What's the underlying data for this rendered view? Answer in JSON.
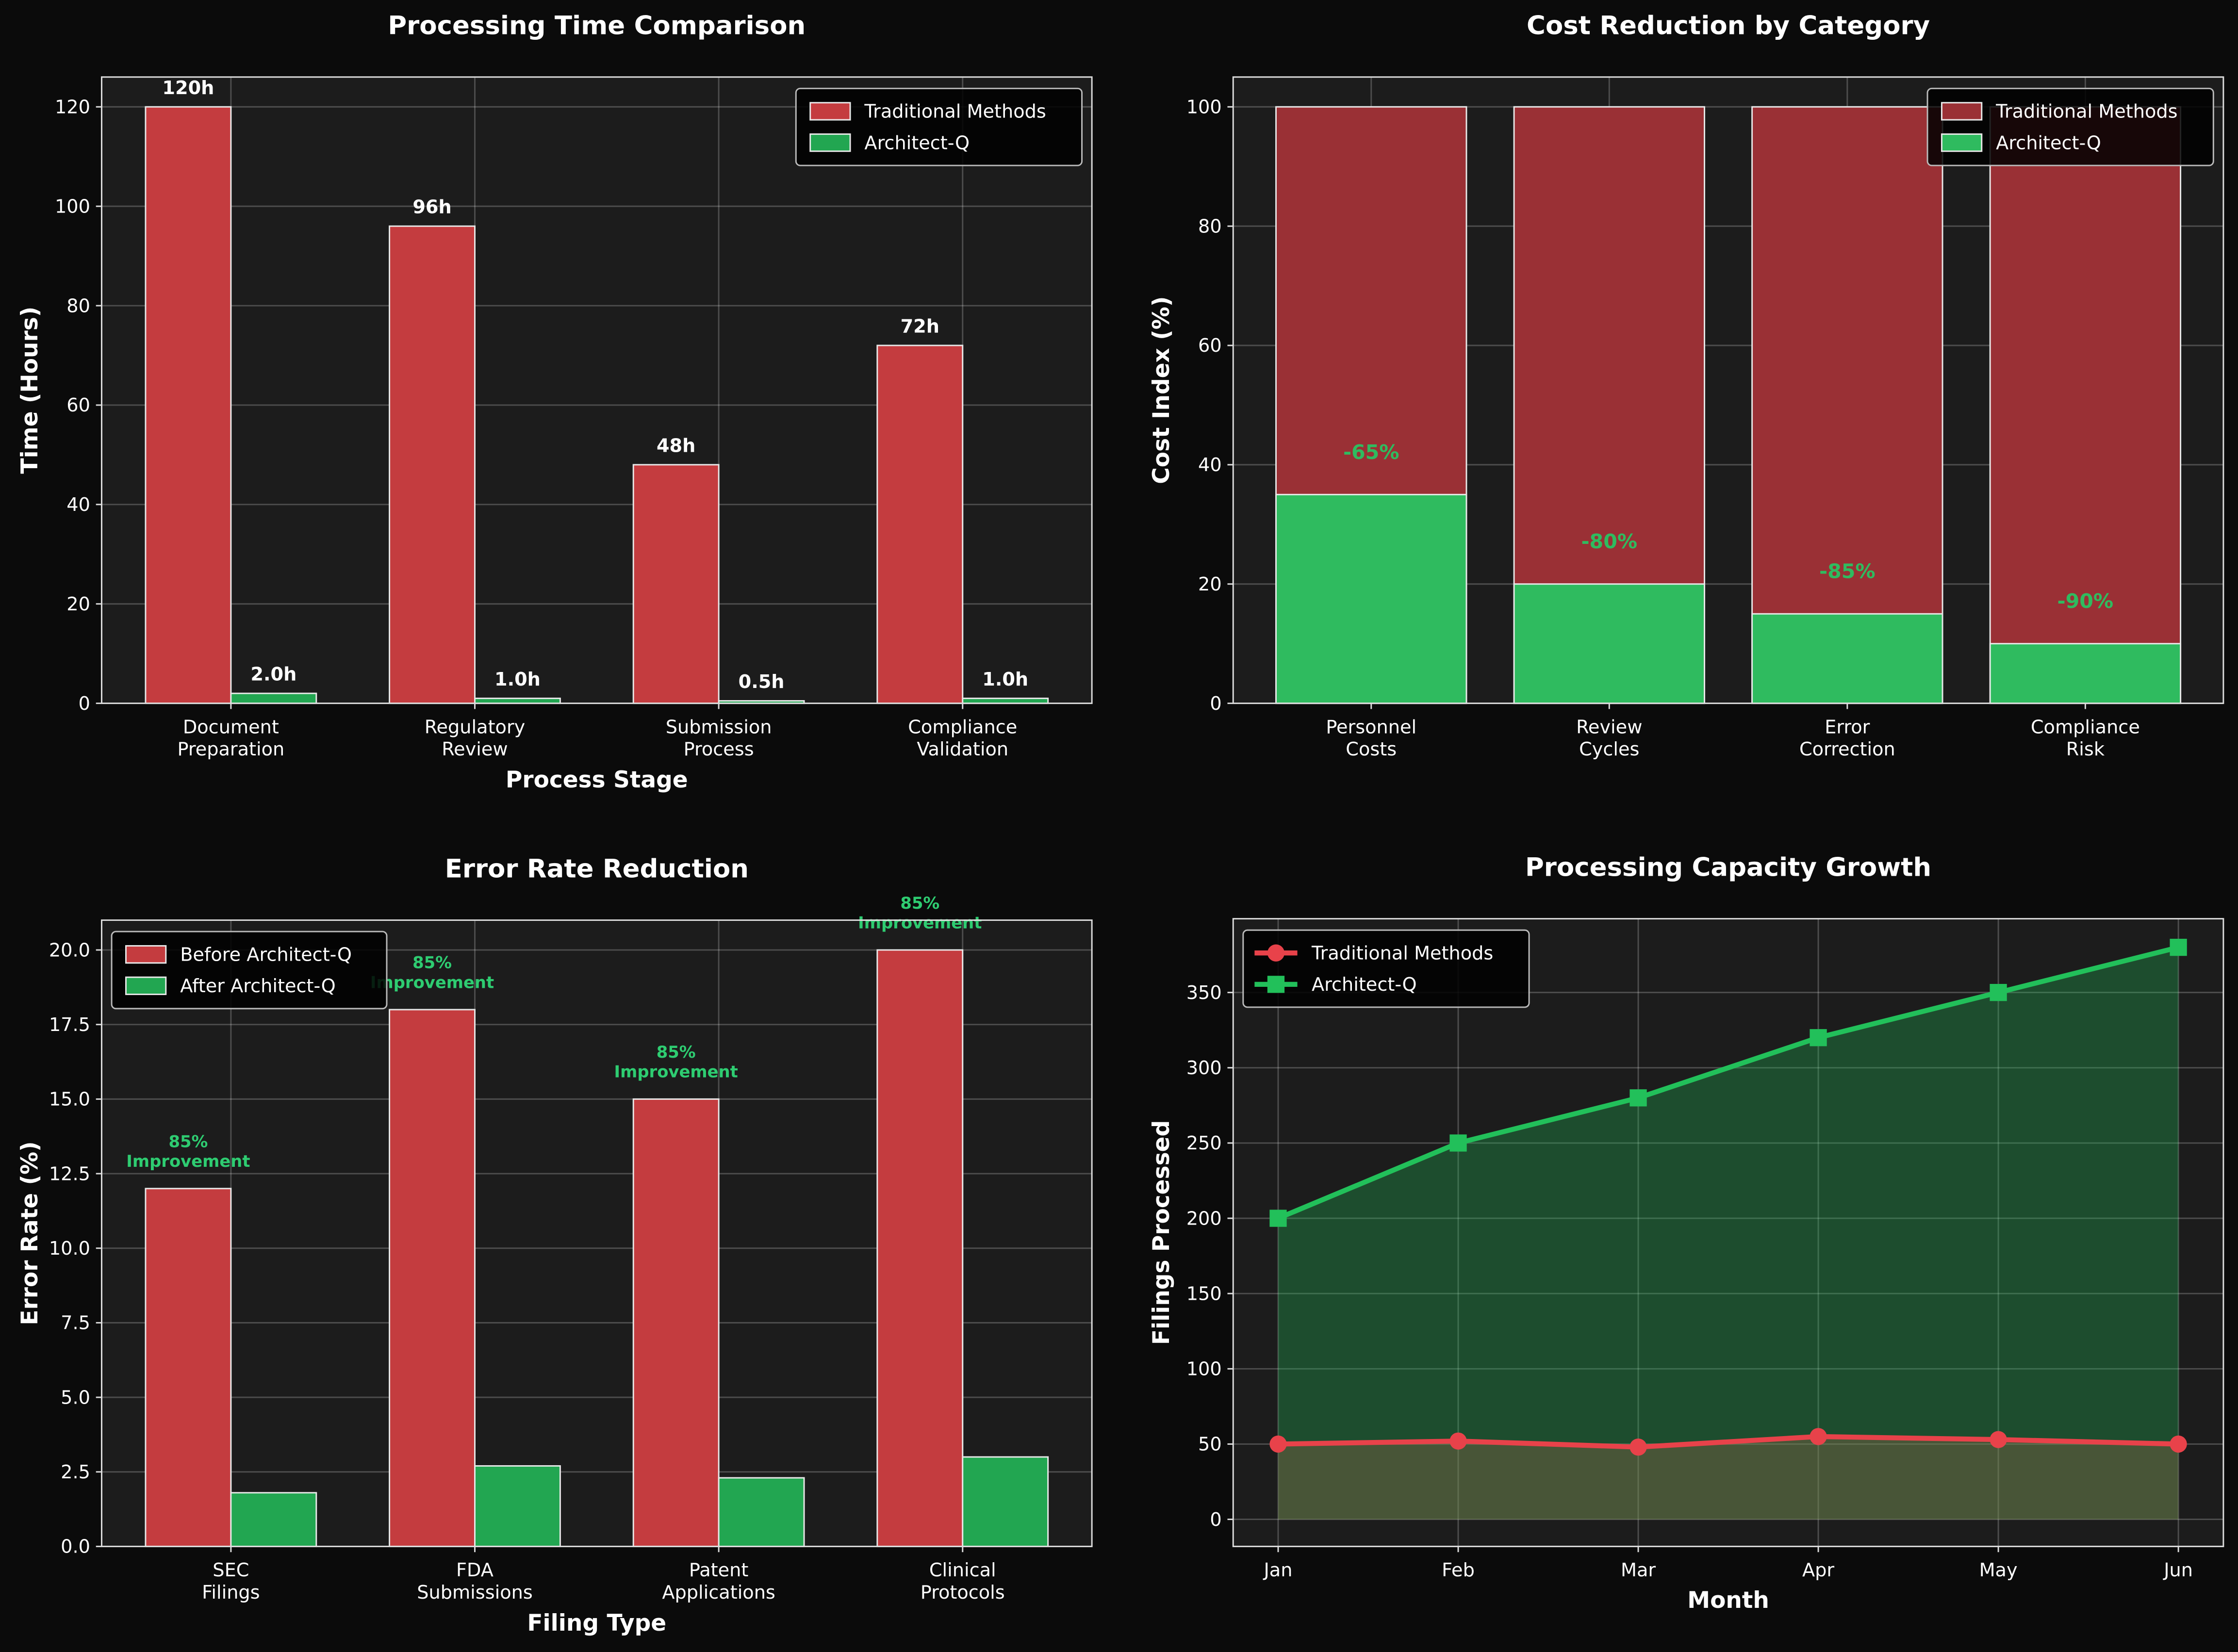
{
  "chart_data": [
    {
      "type": "bar",
      "title": "Processing Time Comparison",
      "xlabel": "Process Stage",
      "ylabel": "Time (Hours)",
      "categories": [
        "Document\nPreparation",
        "Regulatory\nReview",
        "Submission\nProcess",
        "Compliance\nValidation"
      ],
      "series": [
        {
          "name": "Traditional Methods",
          "color": "#c43c3f",
          "values": [
            120,
            96,
            48,
            72
          ],
          "value_labels": [
            "120h",
            "96h",
            "48h",
            "72h"
          ]
        },
        {
          "name": "Architect-Q",
          "color": "#22a651",
          "values": [
            2.0,
            1.0,
            0.5,
            1.0
          ],
          "value_labels": [
            "2.0h",
            "1.0h",
            "0.5h",
            "1.0h"
          ]
        }
      ],
      "ylim": [
        0,
        126
      ],
      "yticks": [
        0,
        20,
        40,
        60,
        80,
        100,
        120
      ],
      "grid": true,
      "legend": "upper right",
      "barmode": "group"
    },
    {
      "type": "bar",
      "title": "Cost Reduction by Category",
      "ylabel": "Cost Index (%)",
      "categories": [
        "Personnel\nCosts",
        "Review\nCycles",
        "Error\nCorrection",
        "Compliance\nRisk"
      ],
      "series": [
        {
          "name": "Traditional Methods",
          "color": "#9a3035",
          "values": [
            100,
            100,
            100,
            100
          ]
        },
        {
          "name": "Architect-Q",
          "color": "#2fbb5f",
          "values": [
            35,
            20,
            15,
            10
          ],
          "annotations": [
            "-65%",
            "-80%",
            "-85%",
            "-90%"
          ]
        }
      ],
      "ylim": [
        0,
        105
      ],
      "yticks": [
        0,
        20,
        40,
        60,
        80,
        100
      ],
      "grid": true,
      "legend": "upper right",
      "barmode": "overlay"
    },
    {
      "type": "bar",
      "title": "Error Rate Reduction",
      "xlabel": "Filing Type",
      "ylabel": "Error Rate (%)",
      "categories": [
        "SEC\nFilings",
        "FDA\nSubmissions",
        "Patent\nApplications",
        "Clinical\nProtocols"
      ],
      "series": [
        {
          "name": "Before Architect-Q",
          "color": "#c43c3f",
          "values": [
            12,
            18,
            15,
            20
          ],
          "annotations": [
            "85%\nImprovement",
            "85%\nImprovement",
            "85%\nImprovement",
            "85%\nImprovement"
          ],
          "annotation_color": "#2ecc71"
        },
        {
          "name": "After Architect-Q",
          "color": "#22a651",
          "values": [
            1.8,
            2.7,
            2.3,
            3.0
          ]
        }
      ],
      "ylim": [
        0,
        21
      ],
      "yticks": [
        {
          "value": 0,
          "label": "0.0"
        },
        2.5,
        {
          "value": 5,
          "label": "5.0"
        },
        7.5,
        {
          "value": 10,
          "label": "10.0"
        },
        12.5,
        {
          "value": 15,
          "label": "15.0"
        },
        17.5,
        {
          "value": 20,
          "label": "20.0"
        }
      ],
      "grid": true,
      "legend": "upper left",
      "barmode": "group"
    },
    {
      "type": "line",
      "title": "Processing Capacity Growth",
      "xlabel": "Month",
      "ylabel": "Filings Processed",
      "categories": [
        "Jan",
        "Feb",
        "Mar",
        "Apr",
        "May",
        "Jun"
      ],
      "series": [
        {
          "name": "Traditional Methods",
          "color": "#e8424a",
          "marker": "circle",
          "values": [
            50,
            52,
            48,
            55,
            53,
            50
          ]
        },
        {
          "name": "Architect-Q",
          "color": "#22c05a",
          "marker": "square",
          "values": [
            200,
            250,
            280,
            320,
            350,
            380
          ]
        }
      ],
      "ylim": [
        -18,
        399
      ],
      "yticks": [
        0,
        50,
        100,
        150,
        200,
        250,
        300,
        350
      ],
      "grid": true,
      "legend": "upper left",
      "fill": true
    }
  ]
}
